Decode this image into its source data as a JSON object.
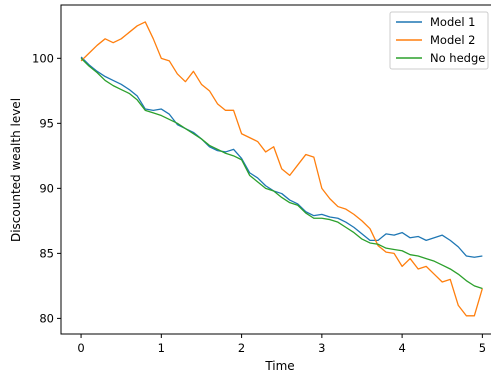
{
  "chart_data": {
    "type": "line",
    "xlabel": "Time",
    "ylabel": "Discounted wealth level",
    "xlim": [
      -0.25,
      5.12
    ],
    "ylim": [
      78.8,
      104.1
    ],
    "xticks": [
      0,
      1,
      2,
      3,
      4,
      5
    ],
    "xtick_labels": [
      "0",
      "1",
      "2",
      "3",
      "4",
      "5"
    ],
    "yticks": [
      80,
      85,
      90,
      95,
      100
    ],
    "ytick_labels": [
      "80",
      "85",
      "90",
      "95",
      "100"
    ],
    "grid": false,
    "legend": "top-right",
    "series": [
      {
        "name": "Model 1",
        "color": "#1f77b4",
        "x": [
          0,
          0.1,
          0.2,
          0.3,
          0.4,
          0.5,
          0.6,
          0.7,
          0.8,
          0.9,
          1.0,
          1.1,
          1.2,
          1.3,
          1.4,
          1.5,
          1.6,
          1.7,
          1.8,
          1.9,
          2.0,
          2.1,
          2.2,
          2.3,
          2.4,
          2.5,
          2.6,
          2.7,
          2.8,
          2.9,
          3.0,
          3.1,
          3.2,
          3.3,
          3.4,
          3.5,
          3.6,
          3.7,
          3.8,
          3.9,
          4.0,
          4.1,
          4.2,
          4.3,
          4.4,
          4.5,
          4.6,
          4.7,
          4.8,
          4.9,
          5.0
        ],
        "values": [
          100.1,
          99.5,
          99.0,
          98.6,
          98.3,
          98.0,
          97.6,
          97.1,
          96.1,
          96.0,
          96.1,
          95.7,
          94.9,
          94.6,
          94.3,
          93.8,
          93.2,
          92.9,
          92.8,
          93.0,
          92.3,
          91.2,
          90.8,
          90.2,
          89.8,
          89.6,
          89.1,
          88.8,
          88.2,
          87.9,
          88.0,
          87.8,
          87.7,
          87.4,
          87.0,
          86.5,
          86.0,
          86.0,
          86.5,
          86.4,
          86.6,
          86.2,
          86.3,
          86.0,
          86.2,
          86.4,
          86.0,
          85.5,
          84.8,
          84.7,
          84.8
        ]
      },
      {
        "name": "Model 2",
        "color": "#ff7f0e",
        "x": [
          0,
          0.1,
          0.2,
          0.3,
          0.4,
          0.5,
          0.6,
          0.7,
          0.8,
          0.9,
          1.0,
          1.1,
          1.2,
          1.3,
          1.4,
          1.5,
          1.6,
          1.7,
          1.8,
          1.9,
          2.0,
          2.1,
          2.2,
          2.3,
          2.4,
          2.5,
          2.6,
          2.7,
          2.8,
          2.9,
          3.0,
          3.1,
          3.2,
          3.3,
          3.4,
          3.5,
          3.6,
          3.7,
          3.8,
          3.9,
          4.0,
          4.1,
          4.2,
          4.3,
          4.4,
          4.5,
          4.6,
          4.7,
          4.8,
          4.9,
          5.0
        ],
        "values": [
          99.8,
          100.4,
          101.0,
          101.5,
          101.2,
          101.5,
          102.0,
          102.5,
          102.8,
          101.5,
          100.0,
          99.8,
          98.8,
          98.2,
          99.0,
          98.0,
          97.5,
          96.5,
          96.0,
          96.0,
          94.2,
          93.9,
          93.6,
          92.8,
          93.2,
          91.5,
          91.0,
          91.8,
          92.6,
          92.4,
          90.0,
          89.2,
          88.6,
          88.4,
          88.0,
          87.5,
          86.9,
          85.6,
          85.1,
          85.0,
          84.0,
          84.6,
          83.8,
          84.0,
          83.4,
          82.8,
          83.0,
          81.0,
          80.2,
          80.2,
          82.3
        ]
      },
      {
        "name": "No hedge",
        "color": "#2ca02c",
        "x": [
          0,
          0.1,
          0.2,
          0.3,
          0.4,
          0.5,
          0.6,
          0.7,
          0.8,
          0.9,
          1.0,
          1.1,
          1.2,
          1.3,
          1.4,
          1.5,
          1.6,
          1.7,
          1.8,
          1.9,
          2.0,
          2.1,
          2.2,
          2.3,
          2.4,
          2.5,
          2.6,
          2.7,
          2.8,
          2.9,
          3.0,
          3.1,
          3.2,
          3.3,
          3.4,
          3.5,
          3.6,
          3.7,
          3.8,
          3.9,
          4.0,
          4.1,
          4.2,
          4.3,
          4.4,
          4.5,
          4.6,
          4.7,
          4.8,
          4.9,
          5.0
        ],
        "values": [
          100.0,
          99.4,
          98.9,
          98.3,
          97.9,
          97.6,
          97.3,
          96.8,
          96.0,
          95.8,
          95.6,
          95.3,
          95.0,
          94.6,
          94.2,
          93.8,
          93.3,
          93.0,
          92.7,
          92.5,
          92.2,
          91.0,
          90.5,
          90.0,
          89.8,
          89.3,
          88.9,
          88.7,
          88.1,
          87.7,
          87.7,
          87.6,
          87.4,
          87.0,
          86.6,
          86.1,
          85.8,
          85.7,
          85.4,
          85.3,
          85.2,
          84.9,
          84.8,
          84.6,
          84.4,
          84.1,
          83.8,
          83.4,
          82.9,
          82.5,
          82.3
        ]
      }
    ]
  }
}
